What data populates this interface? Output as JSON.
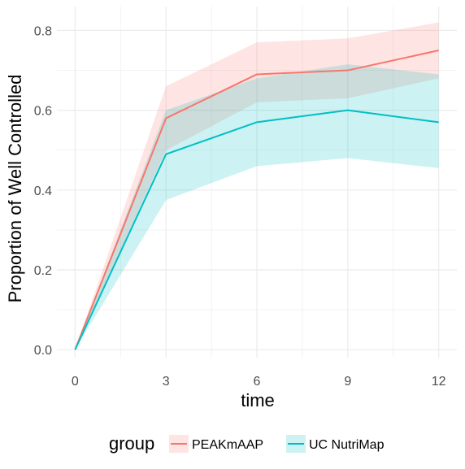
{
  "chart_data": {
    "type": "line",
    "xlabel": "time",
    "ylabel": "Proportion of Well Controlled",
    "x": [
      0,
      3,
      6,
      9,
      12
    ],
    "xticks": [
      "0",
      "3",
      "6",
      "9",
      "12"
    ],
    "yticks": [
      "0.0",
      "0.2",
      "0.4",
      "0.6",
      "0.8"
    ],
    "xlim": [
      -0.6,
      12.6
    ],
    "ylim": [
      -0.02,
      0.86
    ],
    "grid": true,
    "legend_title": "group",
    "legend_position": "bottom",
    "series": [
      {
        "name": "PEAKmAAP",
        "color": "#F8766D",
        "fill": "#F8766D",
        "values": [
          0.0,
          0.58,
          0.69,
          0.7,
          0.75
        ],
        "lower": [
          0.0,
          0.5,
          0.62,
          0.63,
          0.68
        ],
        "upper": [
          0.0,
          0.66,
          0.77,
          0.78,
          0.82
        ]
      },
      {
        "name": "UC NutriMap",
        "color": "#00BFC4",
        "fill": "#00BFC4",
        "values": [
          0.0,
          0.49,
          0.57,
          0.6,
          0.57
        ],
        "lower": [
          0.0,
          0.375,
          0.46,
          0.48,
          0.455
        ],
        "upper": [
          0.0,
          0.6,
          0.68,
          0.715,
          0.69
        ]
      }
    ]
  }
}
